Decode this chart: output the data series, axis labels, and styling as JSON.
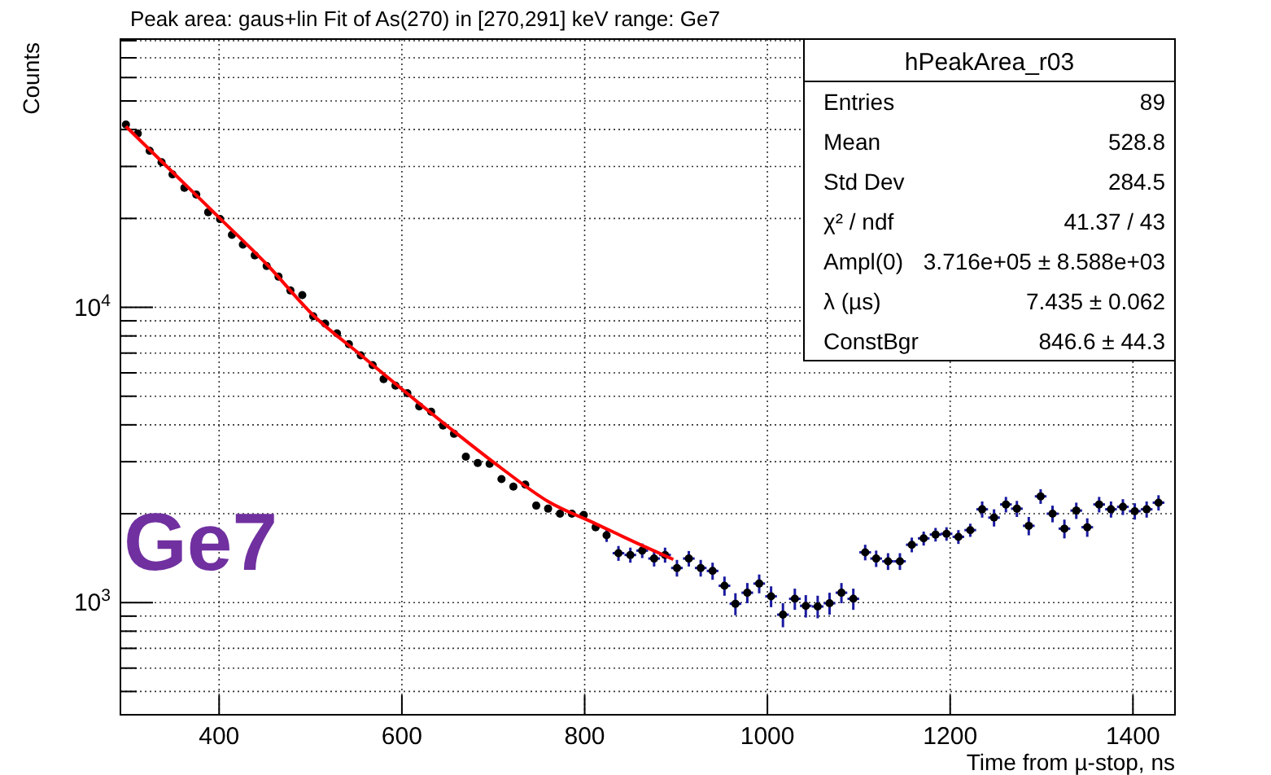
{
  "chart_data": {
    "type": "scatter",
    "title": "Peak area: gaus+lin Fit of As(270) in [270,291] keV range: Ge7",
    "xlabel": "Time from µ-stop, ns",
    "ylabel": "Counts",
    "annotations": [
      "Ge7",
      "hPeakArea_r03",
      "Entries",
      "89",
      "Mean",
      "528.8",
      "Std Dev",
      "284.5",
      "χ² / ndf",
      "41.37 / 43",
      "Ampl(0)",
      "3.716e+05 ± 8.588e+03",
      "λ (µs)",
      "7.435 ± 0.062",
      "ConstBgr",
      "846.6 ± 44.3"
    ],
    "xlim": [
      292,
      1446
    ],
    "ylim": [
      417,
      81000
    ],
    "xticks": [
      400,
      600,
      800,
      1000,
      1200,
      1400
    ],
    "yticks": [
      {
        "value": 500,
        "label": null
      },
      {
        "value": 600,
        "label": null
      },
      {
        "value": 700,
        "label": null
      },
      {
        "value": 800,
        "label": null
      },
      {
        "value": 900,
        "label": null
      },
      {
        "value": 1000,
        "label": "10$^{3}$"
      },
      {
        "value": 2000,
        "label": null
      },
      {
        "value": 3000,
        "label": null
      },
      {
        "value": 4000,
        "label": null
      },
      {
        "value": 5000,
        "label": null
      },
      {
        "value": 6000,
        "label": null
      },
      {
        "value": 7000,
        "label": null
      },
      {
        "value": 8000,
        "label": null
      },
      {
        "value": 9000,
        "label": null
      },
      {
        "value": 10000,
        "label": "10$^{4}$"
      },
      {
        "value": 20000,
        "label": null
      },
      {
        "value": 30000,
        "label": null
      },
      {
        "value": 40000,
        "label": null
      },
      {
        "value": 50000,
        "label": null
      },
      {
        "value": 60000,
        "label": null
      },
      {
        "value": 70000,
        "label": null
      },
      {
        "value": 80000,
        "label": null
      }
    ],
    "log": "y",
    "grid": true,
    "legend": false,
    "series": [
      {
        "color": "#000000",
        "marker": "circle",
        "x": [
          298,
          311,
          324,
          337,
          349,
          362,
          375,
          388,
          401,
          414,
          426,
          439,
          452,
          465,
          478,
          491,
          503,
          516,
          529,
          542,
          555,
          568,
          580,
          593,
          606,
          619,
          632,
          645,
          657,
          670,
          683,
          696,
          709,
          722,
          735,
          747,
          760,
          773,
          786,
          799,
          812,
          824,
          837,
          850,
          863,
          876,
          888,
          901,
          914,
          927,
          940,
          953,
          965,
          978,
          991,
          1004,
          1017,
          1030,
          1042,
          1055,
          1068,
          1081,
          1094,
          1107,
          1119,
          1132,
          1145,
          1158,
          1171,
          1184,
          1196,
          1209,
          1222,
          1235,
          1248,
          1261,
          1273,
          1286,
          1299,
          1312,
          1325,
          1338,
          1350,
          1363,
          1376,
          1389,
          1402,
          1415,
          1428
        ],
        "values": [
          41600,
          38800,
          33900,
          31000,
          28200,
          25400,
          24100,
          21000,
          19900,
          17600,
          16300,
          15000,
          13800,
          12700,
          11400,
          11000,
          9330,
          8810,
          8160,
          7500,
          6880,
          6370,
          5710,
          5430,
          5120,
          4620,
          4430,
          3980,
          3730,
          3120,
          2970,
          2950,
          2620,
          2470,
          2510,
          2130,
          2080,
          2000,
          2000,
          1980,
          1800,
          1690,
          1470,
          1450,
          1500,
          1410,
          1450,
          1310,
          1410,
          1310,
          1280,
          1140,
          991,
          1080,
          1160,
          1050,
          910,
          1030,
          975,
          970,
          995,
          1080,
          1030,
          1480,
          1410,
          1380,
          1380,
          1570,
          1650,
          1700,
          1710,
          1670,
          1760,
          2070,
          1940,
          2150,
          2080,
          1820,
          2290,
          2000,
          1780,
          2050,
          1800,
          2150,
          2070,
          2110,
          2040,
          2070,
          2180
        ],
        "errors": [
          null,
          null,
          null,
          null,
          null,
          null,
          null,
          null,
          null,
          null,
          null,
          null,
          null,
          null,
          null,
          null,
          null,
          null,
          null,
          null,
          null,
          null,
          null,
          null,
          null,
          null,
          null,
          null,
          null,
          null,
          null,
          null,
          null,
          null,
          null,
          null,
          null,
          null,
          null,
          null,
          null,
          85,
          85,
          85,
          85,
          85,
          85,
          85,
          85,
          85,
          85,
          85,
          85,
          85,
          85,
          85,
          85,
          85,
          85,
          85,
          85,
          85,
          85,
          90,
          90,
          90,
          90,
          90,
          90,
          90,
          90,
          90,
          90,
          130,
          130,
          130,
          130,
          130,
          130,
          130,
          130,
          130,
          130,
          130,
          130,
          130,
          130,
          130,
          130
        ],
        "xerrors": [
          null,
          null,
          null,
          null,
          null,
          null,
          null,
          null,
          null,
          null,
          null,
          null,
          null,
          null,
          null,
          null,
          null,
          null,
          null,
          null,
          null,
          null,
          null,
          null,
          null,
          null,
          null,
          null,
          null,
          null,
          null,
          null,
          null,
          null,
          null,
          null,
          null,
          null,
          null,
          null,
          null,
          null,
          6.4,
          6.4,
          6.4,
          6.4,
          6.4,
          6.4,
          6.4,
          6.4,
          6.4,
          6.4,
          6.4,
          6.4,
          6.4,
          6.4,
          6.4,
          6.4,
          6.4,
          6.4,
          6.4,
          6.4,
          6.4,
          6.4,
          6.4,
          6.4,
          6.4,
          6.4,
          6.4,
          6.4,
          6.4,
          6.4,
          6.4,
          6.4,
          6.4,
          6.4,
          6.4,
          6.4,
          6.4,
          6.4,
          6.4,
          6.4,
          6.4,
          6.4,
          6.4,
          6.4,
          6.4,
          6.4,
          6.4
        ]
      },
      {
        "type": "line",
        "color": "#ff0000",
        "marker": "none",
        "line_style": "solid",
        "x": [
          298,
          350,
          401,
          452,
          503,
          555,
          606,
          657,
          709,
          760,
          812,
          863,
          897
        ],
        "values": [
          41000,
          28500,
          20000,
          14000,
          9400,
          6900,
          5100,
          3800,
          2850,
          2200,
          1850,
          1560,
          1400
        ]
      }
    ]
  }
}
